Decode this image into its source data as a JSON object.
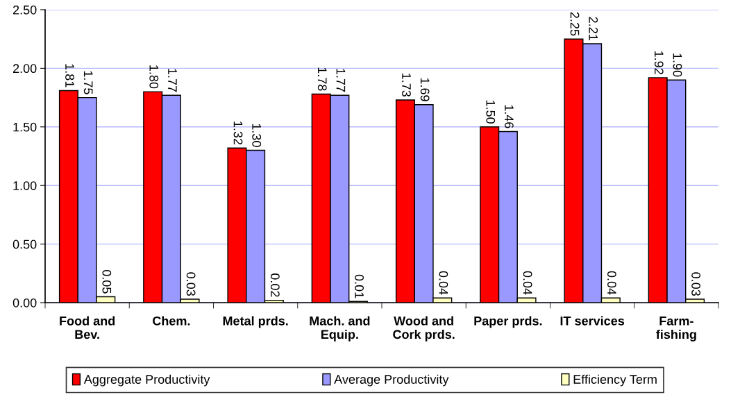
{
  "chart_data": {
    "type": "bar",
    "categories": [
      "Food and\nBev.",
      "Chem.",
      "Metal prds.",
      "Mach. and\nEquip.",
      "Wood and\nCork prds.",
      "Paper prds.",
      "IT services",
      "Farm-\nfishing"
    ],
    "series": [
      {
        "name": "Aggregate Productivity",
        "color": "#ff0000",
        "values": [
          1.81,
          1.8,
          1.32,
          1.78,
          1.73,
          1.5,
          2.25,
          1.92
        ],
        "value_labels": [
          "1.81",
          "1.80",
          "1.32",
          "1.78",
          "1.73",
          "1.50",
          "2.25",
          "1.92"
        ]
      },
      {
        "name": "Average Productivity",
        "color": "#9999ff",
        "values": [
          1.75,
          1.77,
          1.3,
          1.77,
          1.69,
          1.46,
          2.21,
          1.9
        ],
        "value_labels": [
          "1.75",
          "1.77",
          "1.30",
          "1.77",
          "1.69",
          "1.46",
          "2.21",
          "1.90"
        ]
      },
      {
        "name": "Efficiency Term",
        "color": "#ffffc0",
        "values": [
          0.05,
          0.03,
          0.02,
          0.01,
          0.04,
          0.04,
          0.04,
          0.03
        ],
        "value_labels": [
          "0.05",
          "0.03",
          "0.02",
          "0.01",
          "0.04",
          "0.04",
          "0.04",
          "0.03"
        ]
      }
    ],
    "ylim": [
      0,
      2.5
    ],
    "yticks": [
      {
        "value": 0,
        "label": "0.00"
      },
      {
        "value": 0.5,
        "label": "0.50"
      },
      {
        "value": 1,
        "label": "1.00"
      },
      {
        "value": 1.5,
        "label": "1.50"
      },
      {
        "value": 2,
        "label": "2.00"
      },
      {
        "value": 2.5,
        "label": "2.50"
      }
    ],
    "grid": "y",
    "legend": "bottom"
  }
}
